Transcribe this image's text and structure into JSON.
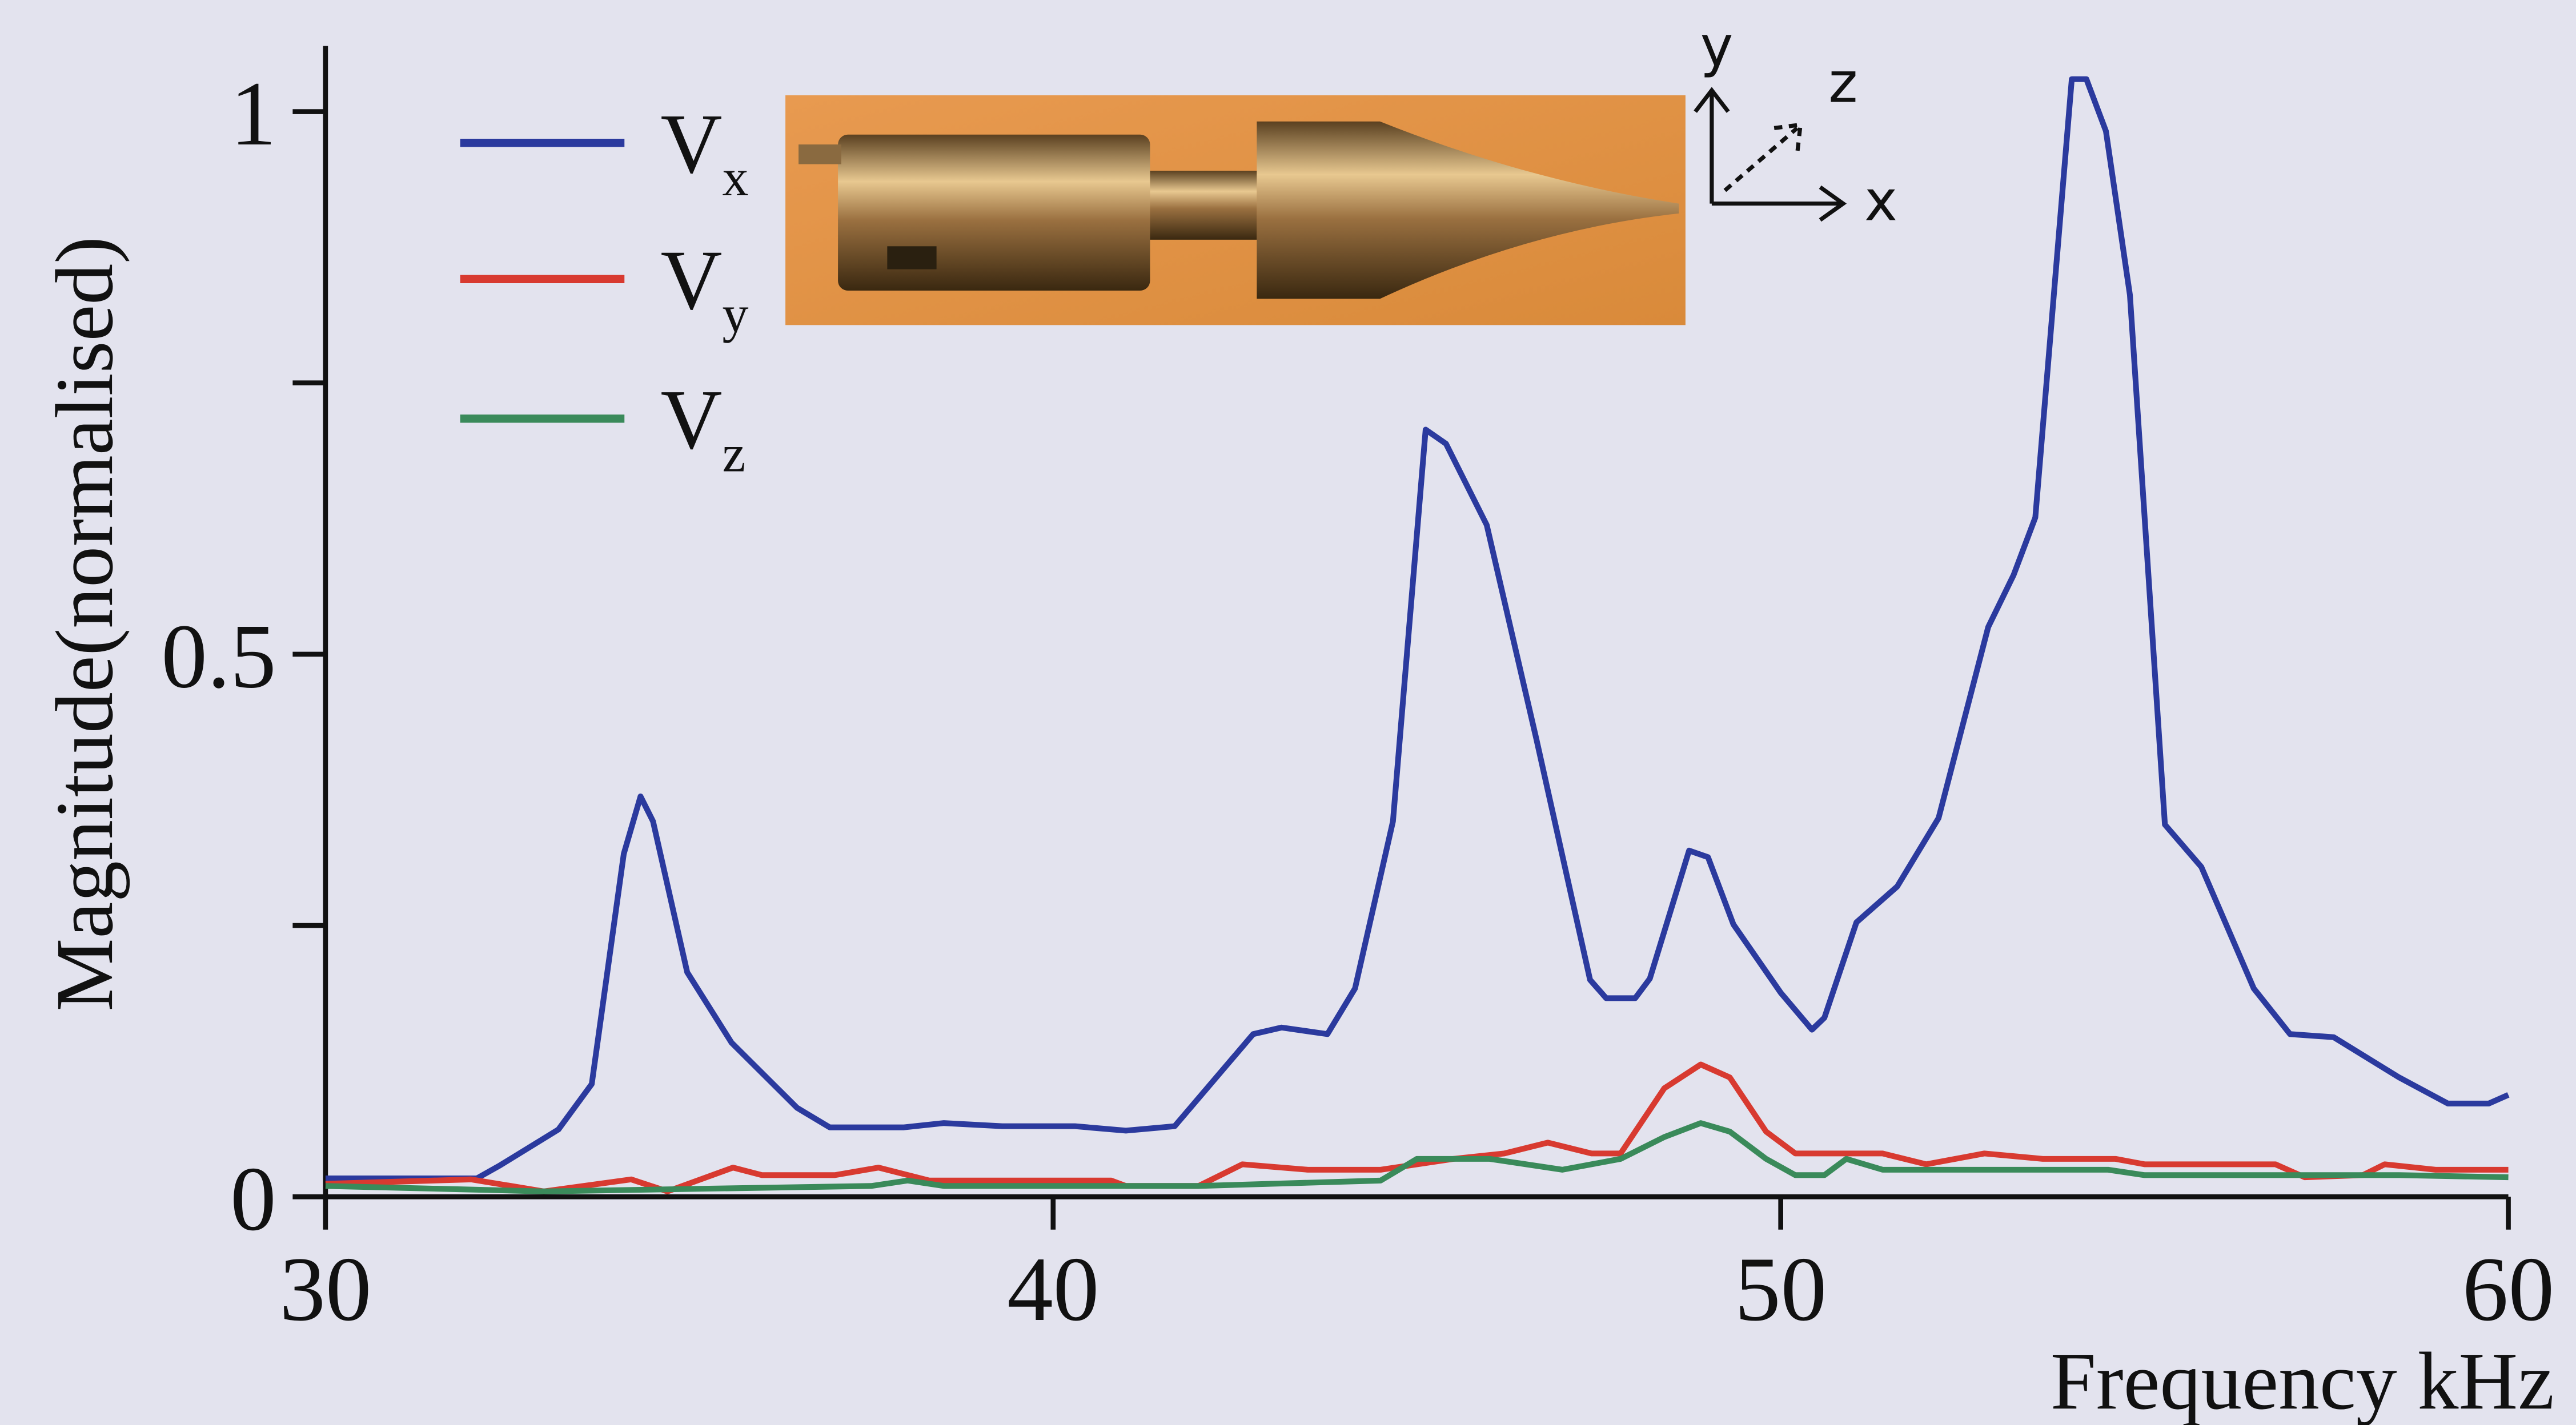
{
  "chart_data": {
    "type": "line",
    "x_label": "Frequency kHz",
    "y_label": "Magnitude(normalised)",
    "xlim": [
      30,
      60
    ],
    "ylim": [
      0,
      1
    ],
    "xticks": [
      30,
      40,
      50,
      60
    ],
    "yticks": [
      0,
      0.5,
      1
    ],
    "y_minor_ticks": [
      0.25,
      0.75
    ],
    "grid": false,
    "legend": "upper left",
    "inset_axes": [
      "y",
      "z",
      "x"
    ],
    "series": [
      {
        "name": "Vx",
        "color": "#2b3a9e",
        "x": [
          30,
          32.08,
          32.4,
          33.2,
          33.66,
          34.1,
          34.33,
          34.5,
          34.97,
          35.58,
          36.48,
          36.93,
          37.95,
          38.5,
          39.3,
          40.3,
          41.0,
          41.67,
          42.75,
          43.14,
          43.77,
          44.15,
          44.67,
          45.12,
          45.4,
          45.96,
          46.64,
          47.38,
          47.6,
          48.0,
          48.2,
          48.74,
          49.0,
          49.35,
          50.0,
          50.43,
          50.6,
          51.04,
          51.6,
          52.17,
          52.85,
          53.2,
          53.5,
          54.0,
          54.2,
          54.47,
          54.8,
          55.28,
          55.78,
          56.5,
          57.0,
          57.6,
          58.5,
          59.17,
          59.73,
          60
        ],
        "values": [
          0.017,
          0.017,
          0.029,
          0.062,
          0.104,
          0.316,
          0.369,
          0.346,
          0.207,
          0.142,
          0.082,
          0.064,
          0.064,
          0.068,
          0.065,
          0.065,
          0.061,
          0.065,
          0.15,
          0.156,
          0.15,
          0.192,
          0.346,
          0.707,
          0.694,
          0.619,
          0.422,
          0.2,
          0.183,
          0.183,
          0.201,
          0.319,
          0.313,
          0.251,
          0.188,
          0.154,
          0.165,
          0.253,
          0.286,
          0.349,
          0.525,
          0.573,
          0.626,
          1.03,
          1.03,
          0.982,
          0.831,
          0.343,
          0.304,
          0.192,
          0.15,
          0.147,
          0.11,
          0.086,
          0.086,
          0.094
        ]
      },
      {
        "name": "Vy",
        "color": "#d83a30",
        "x": [
          30,
          32,
          33,
          34.2,
          34.7,
          35.6,
          36,
          37,
          37.6,
          38.3,
          40,
          40.8,
          41,
          42,
          42.6,
          43.5,
          44.5,
          45.5,
          46.2,
          46.8,
          47.4,
          47.8,
          48.4,
          48.9,
          49.3,
          49.8,
          50.2,
          50.8,
          51.4,
          52,
          52.8,
          53.6,
          54.6,
          55,
          56,
          56.8,
          57.2,
          58,
          58.3,
          59,
          60
        ],
        "values": [
          0.012,
          0.016,
          0.005,
          0.016,
          0.005,
          0.027,
          0.02,
          0.02,
          0.027,
          0.015,
          0.015,
          0.015,
          0.01,
          0.01,
          0.03,
          0.025,
          0.025,
          0.035,
          0.04,
          0.05,
          0.04,
          0.04,
          0.1,
          0.122,
          0.11,
          0.06,
          0.04,
          0.04,
          0.04,
          0.03,
          0.04,
          0.035,
          0.035,
          0.03,
          0.03,
          0.03,
          0.018,
          0.02,
          0.03,
          0.025,
          0.025
        ]
      },
      {
        "name": "Vz",
        "color": "#3a8a5a",
        "x": [
          30,
          33,
          37.5,
          38,
          38.5,
          42,
          44.5,
          45,
          46,
          46.5,
          47,
          47.8,
          48.4,
          48.9,
          49.3,
          49.8,
          50.2,
          50.6,
          50.9,
          51.4,
          52.5,
          53.5,
          54.5,
          55,
          56,
          57,
          58.5,
          60
        ],
        "values": [
          0.01,
          0.005,
          0.01,
          0.015,
          0.01,
          0.01,
          0.015,
          0.035,
          0.035,
          0.03,
          0.025,
          0.035,
          0.055,
          0.068,
          0.06,
          0.035,
          0.02,
          0.02,
          0.035,
          0.025,
          0.025,
          0.025,
          0.025,
          0.02,
          0.02,
          0.02,
          0.02,
          0.018
        ]
      }
    ]
  }
}
